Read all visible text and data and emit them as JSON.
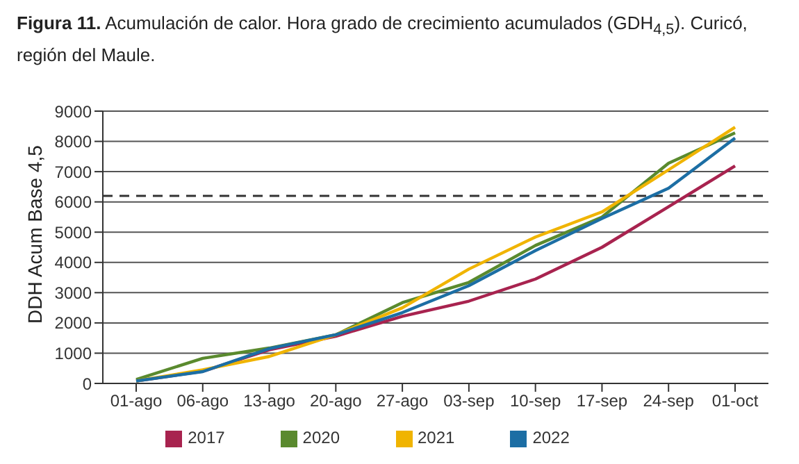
{
  "chart_data": {
    "type": "line",
    "title": "Figura 11. Acumulación de calor. Hora grado de crecimiento acumulados (GDH$_{4,5}$). Curicó, región del Maule.",
    "ylabel": "DDH Acum Base 4,5",
    "categories": [
      "01-ago",
      "06-ago",
      "13-ago",
      "20-ago",
      "27-ago",
      "03-sep",
      "10-sep",
      "17-sep",
      "24-sep",
      "01-oct"
    ],
    "series": [
      {
        "name": "2017",
        "color": "#a8234f",
        "values": [
          80,
          400,
          1110,
          1560,
          2220,
          2720,
          3450,
          4500,
          5840,
          7190
        ]
      },
      {
        "name": "2020",
        "color": "#5a8a2e",
        "values": [
          130,
          830,
          1170,
          1610,
          2670,
          3340,
          4560,
          5500,
          7280,
          8280
        ]
      },
      {
        "name": "2021",
        "color": "#f0b400",
        "values": [
          80,
          450,
          890,
          1610,
          2500,
          3780,
          4840,
          5670,
          7060,
          8470
        ]
      },
      {
        "name": "2022",
        "color": "#1c6ea4",
        "values": [
          80,
          390,
          1150,
          1610,
          2340,
          3230,
          4390,
          5450,
          6450,
          8110
        ]
      }
    ],
    "ylim": [
      0,
      9000
    ],
    "yticks": [
      0,
      1000,
      2000,
      3000,
      4000,
      5000,
      6000,
      7000,
      8000,
      9000
    ],
    "ref_lines": [
      {
        "axis": "y",
        "value": 6200,
        "label": null,
        "color": "#333333",
        "line_style": "dashed"
      }
    ],
    "grid": "y",
    "legend": "bottom",
    "marker": "none",
    "line_style": "solid"
  }
}
